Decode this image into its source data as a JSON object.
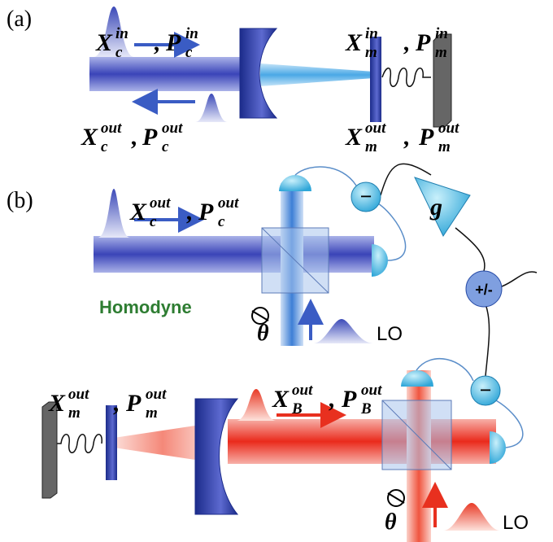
{
  "panels": [
    {
      "label": "(a)"
    },
    {
      "label": "(b)"
    }
  ],
  "quadrature_labels": [
    {
      "items": [
        {
          "base": "X",
          "sub": "c",
          "sup": "in"
        },
        {
          "base": "P",
          "sub": "c",
          "sup": "in"
        }
      ],
      "separator": ","
    },
    {
      "items": [
        {
          "base": "X",
          "sub": "m",
          "sup": "in"
        },
        {
          "base": "P",
          "sub": "m",
          "sup": "in"
        }
      ],
      "separator": ","
    },
    {
      "items": [
        {
          "base": "X",
          "sub": "c",
          "sup": "out"
        },
        {
          "base": "P",
          "sub": "c",
          "sup": "out"
        }
      ],
      "separator": ","
    },
    {
      "items": [
        {
          "base": "X",
          "sub": "m",
          "sup": "out"
        },
        {
          "base": "P",
          "sub": "m",
          "sup": "out"
        }
      ],
      "separator": ","
    },
    {
      "items": [
        {
          "base": "X",
          "sub": "c",
          "sup": "out"
        },
        {
          "base": "P",
          "sub": "c",
          "sup": "out"
        }
      ],
      "separator": ","
    },
    {
      "items": [
        {
          "base": "X",
          "sub": "m",
          "sup": "out"
        },
        {
          "base": "P",
          "sub": "m",
          "sup": "out"
        }
      ],
      "separator": ","
    },
    {
      "items": [
        {
          "base": "X",
          "sub": "B",
          "sup": "out"
        },
        {
          "base": "P",
          "sub": "B",
          "sup": "out"
        }
      ],
      "separator": ","
    }
  ],
  "homodyne_label": "Homodyne",
  "local_oscillators": [
    {
      "label": "LO",
      "phase": "θ"
    },
    {
      "label": "LO",
      "phase": "θ"
    }
  ],
  "gain": "g",
  "combiner": "+/-",
  "subtractors": [
    "−",
    "−"
  ]
}
